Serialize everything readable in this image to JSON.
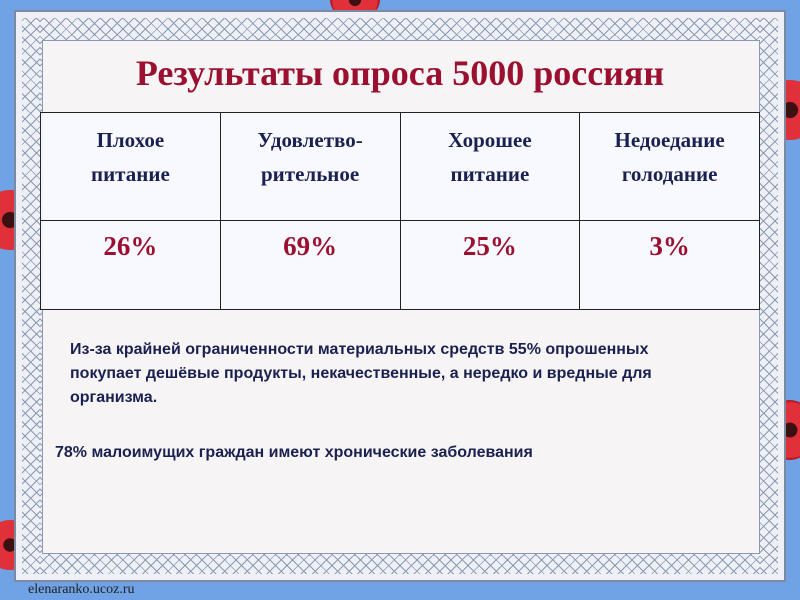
{
  "title": "Результаты опроса 5000 россиян",
  "table": {
    "headers": [
      [
        "Плохое",
        "питание"
      ],
      [
        "Удовлетво-",
        "рительное"
      ],
      [
        "Хорошее",
        "питание"
      ],
      [
        "Недоедание",
        "голодание"
      ]
    ],
    "values": [
      "26%",
      "69%",
      "25%",
      "3%"
    ]
  },
  "notes": [
    "Из-за крайней ограниченности материальных средств 55% опрошенных покупает дешёвые продукты, некачественные, а нередко и вредные для организма.",
    "78% малоимущих граждан имеют хронические заболевания"
  ],
  "watermark": "elenaranko.ucoz.ru",
  "colors": {
    "title": "#9b1030",
    "header_text": "#1a2050",
    "values": "#9b1030",
    "background": "#6fa3e6"
  }
}
